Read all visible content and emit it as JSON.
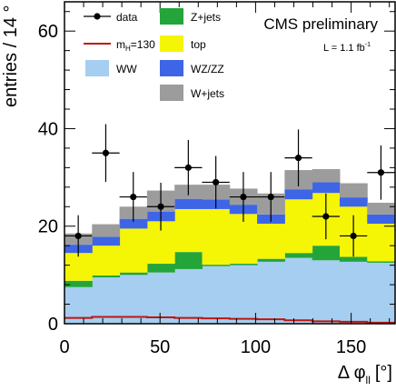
{
  "chart_data": {
    "type": "bar",
    "stacked": true,
    "xlabel_prefix": "Δ φ",
    "xlabel_sub": "ll",
    "xlabel_unit": "[°]",
    "ylabel": "entries / 14 °",
    "xlim": [
      0,
      173
    ],
    "ylim": [
      0,
      66
    ],
    "xticks": [
      0,
      50,
      100,
      150
    ],
    "yticks": [
      0,
      20,
      40,
      60
    ],
    "bin_edges": [
      0,
      14.4,
      28.8,
      43.2,
      57.6,
      72.0,
      86.4,
      100.8,
      115.2,
      129.6,
      144.0,
      158.4,
      172.8
    ],
    "stack_series": [
      {
        "name": "WW",
        "color": "#a6cef1",
        "values": [
          7.5,
          9.5,
          10.0,
          10.5,
          11.2,
          11.8,
          12.0,
          12.7,
          13.5,
          13.0,
          12.7,
          12.5
        ]
      },
      {
        "name": "Z+jets",
        "color": "#23a53a",
        "values": [
          1.3,
          0.4,
          0.5,
          1.8,
          3.5,
          0.3,
          0.3,
          0.6,
          1.0,
          3.0,
          1.0,
          0.3
        ]
      },
      {
        "name": "top",
        "color": "#f5f506",
        "values": [
          5.7,
          6.1,
          9.0,
          8.7,
          8.8,
          11.4,
          10.2,
          7.2,
          11.0,
          10.8,
          10.3,
          7.7
        ]
      },
      {
        "name": "WZ/ZZ",
        "color": "#3e65e6",
        "values": [
          1.7,
          1.8,
          2.0,
          2.0,
          2.1,
          2.0,
          1.9,
          1.9,
          2.0,
          2.2,
          1.9,
          1.9
        ]
      },
      {
        "name": "W+jets",
        "color": "#9c9c9c",
        "values": [
          2.3,
          2.6,
          2.5,
          4.3,
          2.9,
          3.0,
          3.3,
          4.3,
          4.0,
          2.7,
          2.9,
          2.4
        ]
      }
    ],
    "signal_series": {
      "name": "m_H=130",
      "color": "#c0150d",
      "values": [
        1.2,
        1.4,
        1.4,
        1.3,
        1.2,
        1.1,
        1.0,
        0.9,
        0.7,
        0.5,
        0.4,
        0.2
      ]
    },
    "data_points": {
      "name": "data",
      "x": [
        7.2,
        21.6,
        36.0,
        50.4,
        64.8,
        79.2,
        93.6,
        108.0,
        122.4,
        136.8,
        151.2,
        165.6
      ],
      "y": [
        18,
        35,
        26,
        24,
        32,
        29,
        26,
        26,
        34,
        22,
        18,
        31
      ]
    },
    "legend": [
      {
        "key": "data",
        "kind": "marker",
        "label": "data"
      },
      {
        "key": "zjets",
        "kind": "box",
        "color": "#23a53a",
        "label": "Z+jets"
      },
      {
        "key": "higgs",
        "kind": "line",
        "color": "#c0150d",
        "label_main": "m",
        "label_sub": "H",
        "label_rest": "=130"
      },
      {
        "key": "top",
        "kind": "box",
        "color": "#f5f506",
        "label": "top"
      },
      {
        "key": "ww",
        "kind": "box",
        "color": "#a6cef1",
        "label": "WW"
      },
      {
        "key": "wzzz",
        "kind": "box",
        "color": "#3e65e6",
        "label": "WZ/ZZ"
      },
      {
        "key": "wjets",
        "kind": "box",
        "color": "#9c9c9c",
        "label": "W+jets"
      }
    ],
    "annotation": "CMS preliminary",
    "lumi_prefix": "L = 1.1 fb",
    "lumi_exp": "-1",
    "grid": false,
    "legend_placement": "top"
  }
}
